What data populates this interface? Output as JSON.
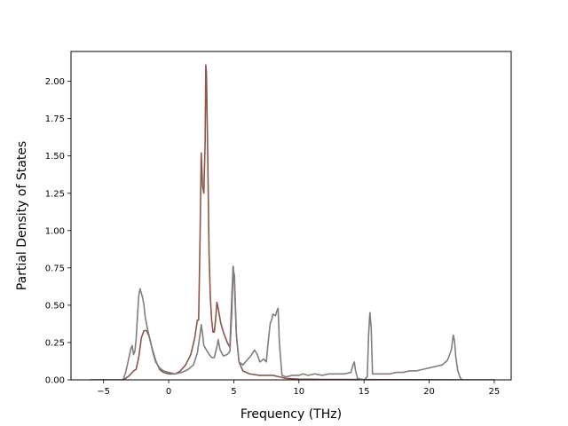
{
  "chart_data": {
    "type": "line",
    "title": "",
    "xlabel": "Frequency (THz)",
    "ylabel": "Partial Density of States",
    "xlim": [
      -7.5,
      26.3
    ],
    "ylim": [
      0,
      2.2
    ],
    "x_ticks": [
      -5,
      0,
      5,
      10,
      15,
      20,
      25
    ],
    "y_ticks": [
      0.0,
      0.25,
      0.5,
      0.75,
      1.0,
      1.25,
      1.5,
      1.75,
      2.0
    ],
    "x_tick_labels": [
      "−5",
      "0",
      "5",
      "10",
      "15",
      "20",
      "25"
    ],
    "y_tick_labels": [
      "0.00",
      "0.25",
      "0.50",
      "0.75",
      "1.00",
      "1.25",
      "1.50",
      "1.75",
      "2.00"
    ],
    "grid": false,
    "legend": "none",
    "series": [
      {
        "color": "#8c564b",
        "points": [
          [
            -6.0,
            0
          ],
          [
            -3.6,
            0
          ],
          [
            -3.3,
            0.01
          ],
          [
            -3.0,
            0.03
          ],
          [
            -2.7,
            0.06
          ],
          [
            -2.5,
            0.07
          ],
          [
            -2.3,
            0.15
          ],
          [
            -2.1,
            0.28
          ],
          [
            -1.9,
            0.33
          ],
          [
            -1.7,
            0.33
          ],
          [
            -1.5,
            0.29
          ],
          [
            -1.3,
            0.22
          ],
          [
            -1.0,
            0.13
          ],
          [
            -0.7,
            0.07
          ],
          [
            -0.4,
            0.05
          ],
          [
            0.0,
            0.04
          ],
          [
            0.5,
            0.04
          ],
          [
            0.9,
            0.06
          ],
          [
            1.3,
            0.1
          ],
          [
            1.7,
            0.17
          ],
          [
            2.0,
            0.28
          ],
          [
            2.2,
            0.4
          ],
          [
            2.3,
            0.4
          ],
          [
            2.4,
            0.9
          ],
          [
            2.5,
            1.52
          ],
          [
            2.6,
            1.3
          ],
          [
            2.7,
            1.25
          ],
          [
            2.8,
            1.6
          ],
          [
            2.85,
            2.11
          ],
          [
            2.9,
            2.05
          ],
          [
            3.0,
            1.5
          ],
          [
            3.1,
            0.85
          ],
          [
            3.2,
            0.55
          ],
          [
            3.3,
            0.4
          ],
          [
            3.4,
            0.32
          ],
          [
            3.5,
            0.32
          ],
          [
            3.6,
            0.4
          ],
          [
            3.7,
            0.52
          ],
          [
            3.8,
            0.48
          ],
          [
            4.0,
            0.38
          ],
          [
            4.2,
            0.32
          ],
          [
            4.5,
            0.25
          ],
          [
            4.7,
            0.22
          ],
          [
            4.85,
            0.55
          ],
          [
            4.95,
            0.76
          ],
          [
            5.05,
            0.65
          ],
          [
            5.2,
            0.3
          ],
          [
            5.4,
            0.12
          ],
          [
            5.7,
            0.06
          ],
          [
            6.2,
            0.04
          ],
          [
            7.0,
            0.03
          ],
          [
            8.0,
            0.03
          ],
          [
            8.5,
            0.02
          ],
          [
            9.0,
            0.01
          ],
          [
            10.0,
            0.005
          ],
          [
            12.0,
            0.003
          ],
          [
            14.0,
            0.003
          ],
          [
            15.0,
            0.002
          ],
          [
            18.0,
            0.001
          ],
          [
            22.5,
            0
          ],
          [
            25.0,
            0
          ]
        ]
      },
      {
        "color": "#7f7f7f",
        "points": [
          [
            -6.0,
            0
          ],
          [
            -3.5,
            0
          ],
          [
            -3.3,
            0.05
          ],
          [
            -3.1,
            0.13
          ],
          [
            -2.9,
            0.21
          ],
          [
            -2.8,
            0.23
          ],
          [
            -2.7,
            0.17
          ],
          [
            -2.6,
            0.19
          ],
          [
            -2.5,
            0.27
          ],
          [
            -2.4,
            0.42
          ],
          [
            -2.3,
            0.56
          ],
          [
            -2.2,
            0.61
          ],
          [
            -2.1,
            0.58
          ],
          [
            -2.0,
            0.55
          ],
          [
            -1.9,
            0.5
          ],
          [
            -1.8,
            0.42
          ],
          [
            -1.6,
            0.33
          ],
          [
            -1.4,
            0.26
          ],
          [
            -1.2,
            0.18
          ],
          [
            -1.0,
            0.12
          ],
          [
            -0.7,
            0.08
          ],
          [
            -0.4,
            0.06
          ],
          [
            0.0,
            0.05
          ],
          [
            0.5,
            0.04
          ],
          [
            1.0,
            0.05
          ],
          [
            1.5,
            0.07
          ],
          [
            1.9,
            0.1
          ],
          [
            2.2,
            0.18
          ],
          [
            2.4,
            0.3
          ],
          [
            2.5,
            0.37
          ],
          [
            2.6,
            0.31
          ],
          [
            2.7,
            0.23
          ],
          [
            2.9,
            0.2
          ],
          [
            3.1,
            0.17
          ],
          [
            3.3,
            0.15
          ],
          [
            3.5,
            0.15
          ],
          [
            3.7,
            0.22
          ],
          [
            3.8,
            0.27
          ],
          [
            3.95,
            0.2
          ],
          [
            4.2,
            0.16
          ],
          [
            4.5,
            0.17
          ],
          [
            4.7,
            0.19
          ],
          [
            4.85,
            0.45
          ],
          [
            4.95,
            0.74
          ],
          [
            5.05,
            0.7
          ],
          [
            5.2,
            0.3
          ],
          [
            5.4,
            0.12
          ],
          [
            5.7,
            0.1
          ],
          [
            6.0,
            0.13
          ],
          [
            6.3,
            0.16
          ],
          [
            6.6,
            0.2
          ],
          [
            6.8,
            0.17
          ],
          [
            7.0,
            0.12
          ],
          [
            7.3,
            0.14
          ],
          [
            7.5,
            0.12
          ],
          [
            7.6,
            0.22
          ],
          [
            7.8,
            0.38
          ],
          [
            7.9,
            0.4
          ],
          [
            8.0,
            0.44
          ],
          [
            8.2,
            0.43
          ],
          [
            8.3,
            0.46
          ],
          [
            8.4,
            0.48
          ],
          [
            8.5,
            0.25
          ],
          [
            8.7,
            0.03
          ],
          [
            9.0,
            0.02
          ],
          [
            9.5,
            0.03
          ],
          [
            10.0,
            0.03
          ],
          [
            10.3,
            0.04
          ],
          [
            10.7,
            0.03
          ],
          [
            11.2,
            0.04
          ],
          [
            11.8,
            0.03
          ],
          [
            12.3,
            0.04
          ],
          [
            13.0,
            0.04
          ],
          [
            13.5,
            0.04
          ],
          [
            14.0,
            0.05
          ],
          [
            14.15,
            0.1
          ],
          [
            14.25,
            0.12
          ],
          [
            14.35,
            0.06
          ],
          [
            14.5,
            0.01
          ],
          [
            15.0,
            0.0
          ],
          [
            15.25,
            0.02
          ],
          [
            15.35,
            0.3
          ],
          [
            15.45,
            0.45
          ],
          [
            15.55,
            0.35
          ],
          [
            15.65,
            0.04
          ],
          [
            16.0,
            0.04
          ],
          [
            17.0,
            0.04
          ],
          [
            17.5,
            0.05
          ],
          [
            18.0,
            0.05
          ],
          [
            18.5,
            0.06
          ],
          [
            19.0,
            0.06
          ],
          [
            19.5,
            0.07
          ],
          [
            20.0,
            0.08
          ],
          [
            20.5,
            0.09
          ],
          [
            21.0,
            0.1
          ],
          [
            21.4,
            0.13
          ],
          [
            21.7,
            0.2
          ],
          [
            21.85,
            0.3
          ],
          [
            21.95,
            0.26
          ],
          [
            22.05,
            0.15
          ],
          [
            22.2,
            0.06
          ],
          [
            22.4,
            0.01
          ],
          [
            22.6,
            0
          ],
          [
            25.0,
            0
          ]
        ]
      }
    ]
  }
}
